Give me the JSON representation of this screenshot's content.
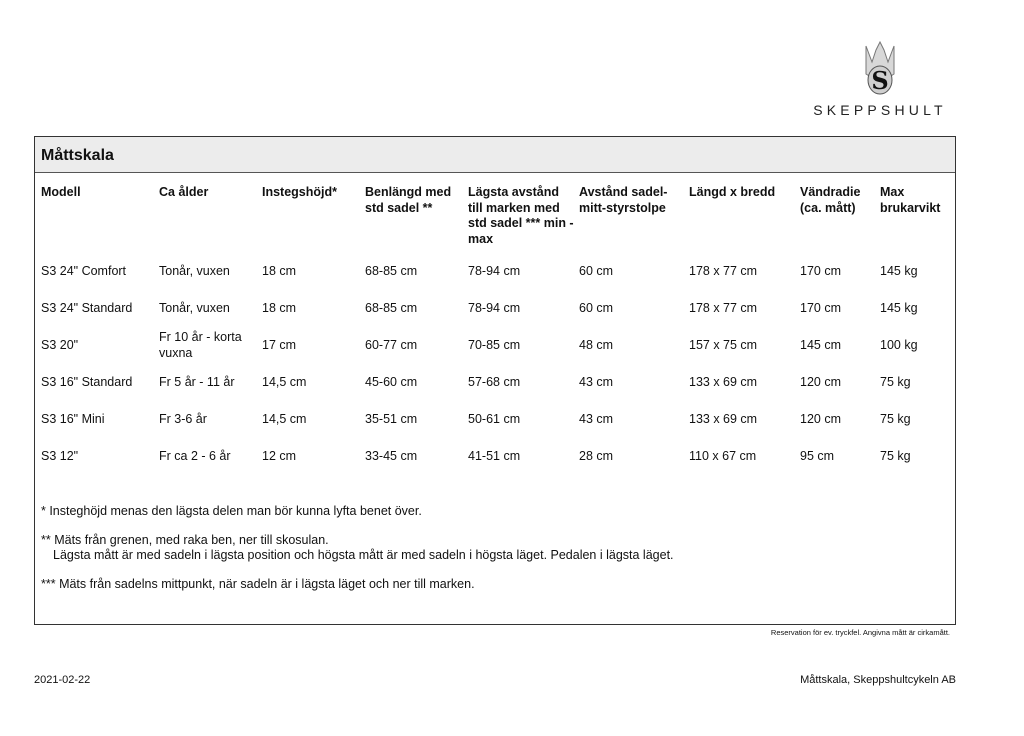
{
  "logo": {
    "brand": "SKEPPSHULT",
    "icon": "crown-s-emblem"
  },
  "title": "Måttskala",
  "headers": [
    "Modell",
    "Ca ålder",
    "Instegshöjd*",
    "Benlängd med std sadel **",
    "Lägsta avstånd till marken med std sadel *** min - max",
    "Avstånd sadel-mitt-styrstolpe",
    "Längd x bredd",
    "Vändradie (ca. mått)",
    "Max brukarvikt"
  ],
  "rows": [
    [
      "S3 24\" Comfort",
      "Tonår, vuxen",
      "18 cm",
      "68-85 cm",
      "78-94 cm",
      "60 cm",
      "178 x 77 cm",
      "170 cm",
      "145 kg"
    ],
    [
      "S3 24\" Standard",
      "Tonår, vuxen",
      "18 cm",
      "68-85 cm",
      "78-94 cm",
      "60 cm",
      "178 x 77 cm",
      "170 cm",
      "145 kg"
    ],
    [
      "S3 20\"",
      "Fr 10 år - korta vuxna",
      "17 cm",
      "60-77 cm",
      "70-85 cm",
      "48 cm",
      "157 x 75 cm",
      "145 cm",
      "100 kg"
    ],
    [
      "S3 16\" Standard",
      "Fr 5 år - 11 år",
      "14,5 cm",
      "45-60 cm",
      "57-68 cm",
      "43 cm",
      "133 x 69 cm",
      "120 cm",
      "75 kg"
    ],
    [
      "S3 16\" Mini",
      "Fr 3-6 år",
      "14,5 cm",
      "35-51 cm",
      "50-61 cm",
      "43 cm",
      "133 x 69 cm",
      "120 cm",
      "75 kg"
    ],
    [
      "S3 12\"",
      "Fr ca 2 - 6 år",
      "12 cm",
      "33-45 cm",
      "41-51 cm",
      "28 cm",
      "110 x 67 cm",
      "95 cm",
      "75 kg"
    ]
  ],
  "notes": {
    "n1": "* Insteghöjd menas den lägsta delen man bör kunna lyfta benet över.",
    "n2a": "** Mäts från grenen, med raka ben, ner till skosulan.",
    "n2b": "Lägsta mått är med sadeln i lägsta position och högsta mått är med sadeln i högsta läget. Pedalen i lägsta läget.",
    "n3": "*** Mäts från sadelns mittpunkt, när sadeln är i lägsta läget och ner till marken."
  },
  "reservation": "Reservation för ev. tryckfel.  Angivna mått är cirkamått.",
  "footer": {
    "date": "2021-02-22",
    "right": "Måttskala, Skeppshultcykeln AB"
  }
}
